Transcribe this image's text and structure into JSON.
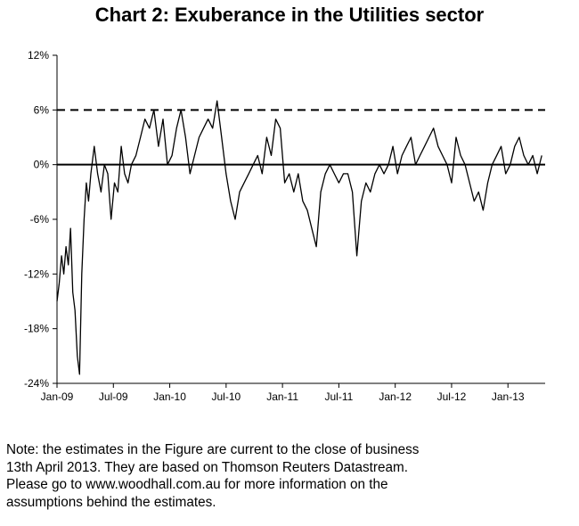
{
  "chart_data": {
    "type": "line",
    "title": "Chart 2: Exuberance in the Utilities sector",
    "xlabel": "",
    "ylabel": "",
    "ylim": [
      -24,
      12
    ],
    "yticks": [
      12,
      6,
      0,
      -6,
      -12,
      -18,
      -24
    ],
    "ytick_labels": [
      "12%",
      "6%",
      "0%",
      "-6%",
      "-12%",
      "-18%",
      "-24%"
    ],
    "xlim": [
      2009.0,
      2013.33
    ],
    "xticks": [
      2009.0,
      2009.5,
      2010.0,
      2010.5,
      2011.0,
      2011.5,
      2012.0,
      2012.5,
      2013.0
    ],
    "xtick_labels": [
      "Jan-09",
      "Jul-09",
      "Jan-10",
      "Jul-10",
      "Jan-11",
      "Jul-11",
      "Jan-12",
      "Jul-12",
      "Jan-13"
    ],
    "reference_lines": [
      {
        "name": "threshold",
        "value": 6,
        "style": "dashed"
      },
      {
        "name": "zero",
        "value": 0,
        "style": "solid"
      }
    ],
    "series": [
      {
        "name": "Utilities exuberance",
        "x": [
          2009.0,
          2009.02,
          2009.04,
          2009.06,
          2009.08,
          2009.1,
          2009.12,
          2009.14,
          2009.16,
          2009.18,
          2009.2,
          2009.22,
          2009.24,
          2009.26,
          2009.28,
          2009.3,
          2009.33,
          2009.36,
          2009.39,
          2009.42,
          2009.45,
          2009.48,
          2009.51,
          2009.54,
          2009.57,
          2009.6,
          2009.63,
          2009.66,
          2009.7,
          2009.74,
          2009.78,
          2009.82,
          2009.86,
          2009.9,
          2009.94,
          2009.98,
          2010.02,
          2010.06,
          2010.1,
          2010.14,
          2010.18,
          2010.22,
          2010.26,
          2010.3,
          2010.34,
          2010.38,
          2010.42,
          2010.46,
          2010.5,
          2010.54,
          2010.58,
          2010.62,
          2010.66,
          2010.7,
          2010.74,
          2010.78,
          2010.82,
          2010.86,
          2010.9,
          2010.94,
          2010.98,
          2011.02,
          2011.06,
          2011.1,
          2011.14,
          2011.18,
          2011.22,
          2011.26,
          2011.3,
          2011.34,
          2011.38,
          2011.42,
          2011.46,
          2011.5,
          2011.54,
          2011.58,
          2011.62,
          2011.66,
          2011.7,
          2011.74,
          2011.78,
          2011.82,
          2011.86,
          2011.9,
          2011.94,
          2011.98,
          2012.02,
          2012.06,
          2012.1,
          2012.14,
          2012.18,
          2012.22,
          2012.26,
          2012.3,
          2012.34,
          2012.38,
          2012.42,
          2012.46,
          2012.5,
          2012.54,
          2012.58,
          2012.62,
          2012.66,
          2012.7,
          2012.74,
          2012.78,
          2012.82,
          2012.86,
          2012.9,
          2012.94,
          2012.98,
          2013.02,
          2013.06,
          2013.1,
          2013.14,
          2013.18,
          2013.22,
          2013.26,
          2013.3
        ],
        "y": [
          -15,
          -13,
          -10,
          -12,
          -9,
          -11,
          -7,
          -14,
          -16,
          -21,
          -23,
          -12,
          -6,
          -2,
          -4,
          -1,
          2,
          -1,
          -3,
          0,
          -1,
          -6,
          -2,
          -3,
          2,
          -1,
          -2,
          0,
          1,
          3,
          5,
          4,
          6,
          2,
          5,
          0,
          1,
          4,
          6,
          3,
          -1,
          1,
          3,
          4,
          5,
          4,
          7,
          3,
          -1,
          -4,
          -6,
          -3,
          -2,
          -1,
          0,
          1,
          -1,
          3,
          1,
          5,
          4,
          -2,
          -1,
          -3,
          -1,
          -4,
          -5,
          -7,
          -9,
          -3,
          -1,
          0,
          -1,
          -2,
          -1,
          -1,
          -3,
          -10,
          -4,
          -2,
          -3,
          -1,
          0,
          -1,
          0,
          2,
          -1,
          1,
          2,
          3,
          0,
          1,
          2,
          3,
          4,
          2,
          1,
          0,
          -2,
          3,
          1,
          0,
          -2,
          -4,
          -3,
          -5,
          -2,
          0,
          1,
          2,
          -1,
          0,
          2,
          3,
          1,
          0,
          1,
          -1,
          1
        ]
      }
    ]
  },
  "note": {
    "line1": "Note: the estimates in the Figure are current to the close of business",
    "line2": "13th April 2013. They are based on Thomson Reuters Datastream.",
    "line3": "Please go to www.woodhall.com.au for more information on the",
    "line4": "assumptions behind the estimates."
  }
}
